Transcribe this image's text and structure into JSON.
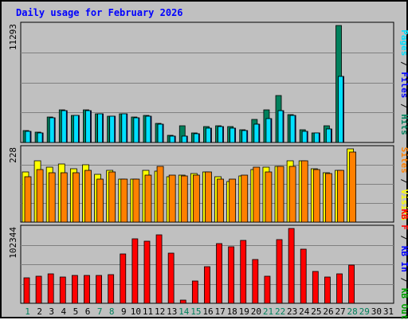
{
  "title": "Daily usage for February 2026",
  "colors": {
    "hits": "#00805c",
    "files": "#00c0ff",
    "pages": "#00e0ff",
    "visits": "#ffff00",
    "sites": "#ff8000",
    "kbin": "#ff0000",
    "background": "#c0c0c0",
    "weekday_label": "#000000",
    "weekend_label": "#00805c"
  },
  "chart_data": [
    {
      "type": "bar",
      "panel": "top",
      "max_label": "11293",
      "ymax": 11293,
      "right_label_parts": [
        {
          "text": "Pages",
          "color": "#00e0ff"
        },
        {
          "text": " / ",
          "color": "#000000"
        },
        {
          "text": "Files",
          "color": "#0000ff"
        },
        {
          "text": " / ",
          "color": "#000000"
        },
        {
          "text": "Hits",
          "color": "#00805c"
        }
      ],
      "categories": [
        "1",
        "2",
        "3",
        "4",
        "5",
        "6",
        "7",
        "8",
        "9",
        "10",
        "11",
        "12",
        "13",
        "14",
        "15",
        "16",
        "17",
        "18",
        "19",
        "20",
        "21",
        "22",
        "23",
        "24",
        "25",
        "26",
        "27",
        "28",
        "29",
        "30",
        "31"
      ],
      "series": [
        {
          "name": "Hits",
          "color": "#00805c",
          "values": [
            1150,
            1000,
            2450,
            3150,
            2650,
            3150,
            2800,
            2550,
            2800,
            2450,
            2600,
            1850,
            700,
            1650,
            900,
            1500,
            1600,
            1500,
            1250,
            2250,
            3150,
            4500,
            2700,
            1200,
            950,
            1600,
            11293,
            0,
            0,
            0,
            0
          ]
        },
        {
          "name": "Files",
          "color": "#0000ff",
          "values": [
            1100,
            950,
            2400,
            3100,
            2600,
            3100,
            2750,
            2500,
            2750,
            2400,
            2500,
            1800,
            650,
            600,
            850,
            1400,
            1500,
            1400,
            1150,
            1750,
            2300,
            3100,
            2600,
            1100,
            900,
            1300,
            6400,
            0,
            0,
            0,
            0
          ]
        },
        {
          "name": "Pages",
          "color": "#00e0ff",
          "values": [
            1100,
            950,
            2400,
            3100,
            2600,
            3100,
            2750,
            2500,
            2750,
            2400,
            2500,
            1800,
            650,
            600,
            850,
            1400,
            1500,
            1400,
            1150,
            1750,
            2300,
            3100,
            2600,
            1100,
            900,
            1300,
            6400,
            0,
            0,
            0,
            0
          ]
        }
      ]
    },
    {
      "type": "bar",
      "panel": "middle",
      "max_label": "228",
      "ymax": 228,
      "right_label_parts": [
        {
          "text": "Sites",
          "color": "#ff8000"
        },
        {
          "text": " / ",
          "color": "#000000"
        },
        {
          "text": "Visits",
          "color": "#ffff00"
        }
      ],
      "categories": [
        "1",
        "2",
        "3",
        "4",
        "5",
        "6",
        "7",
        "8",
        "9",
        "10",
        "11",
        "12",
        "13",
        "14",
        "15",
        "16",
        "17",
        "18",
        "19",
        "20",
        "21",
        "22",
        "23",
        "24",
        "25",
        "26",
        "27",
        "28",
        "29",
        "30",
        "31"
      ],
      "series": [
        {
          "name": "Visits",
          "color": "#ffff00",
          "values": [
            155,
            190,
            170,
            182,
            166,
            179,
            148,
            161,
            135,
            135,
            161,
            159,
            141,
            145,
            151,
            156,
            141,
            127,
            143,
            164,
            171,
            174,
            191,
            190,
            167,
            153,
            162,
            228,
            0,
            0,
            0
          ]
        },
        {
          "name": "Sites",
          "color": "#ff8000",
          "values": [
            142,
            163,
            154,
            153,
            153,
            160,
            133,
            157,
            135,
            135,
            145,
            173,
            147,
            143,
            147,
            157,
            133,
            134,
            146,
            172,
            155,
            174,
            173,
            191,
            163,
            152,
            162,
            219,
            0,
            0,
            0
          ]
        }
      ]
    },
    {
      "type": "bar",
      "panel": "bottom",
      "max_label": "102344",
      "ymax": 102344,
      "right_label_parts": [
        {
          "text": "KB F",
          "color": "#ff0000"
        },
        {
          "text": " / ",
          "color": "#000000"
        },
        {
          "text": "KB In",
          "color": "#0000ff"
        },
        {
          "text": " / ",
          "color": "#000000"
        },
        {
          "text": "KB Out",
          "color": "#00a000"
        }
      ],
      "categories": [
        "1",
        "2",
        "3",
        "4",
        "5",
        "6",
        "7",
        "8",
        "9",
        "10",
        "11",
        "12",
        "13",
        "14",
        "15",
        "16",
        "17",
        "18",
        "19",
        "20",
        "21",
        "22",
        "23",
        "24",
        "25",
        "26",
        "27",
        "28",
        "29",
        "30",
        "31"
      ],
      "series": [
        {
          "name": "KB F",
          "color": "#ff0000",
          "values": [
            35200,
            36500,
            39900,
            35600,
            38000,
            37900,
            37700,
            39200,
            68000,
            88200,
            85200,
            93600,
            69000,
            4500,
            30400,
            50500,
            81200,
            77800,
            86000,
            59600,
            37000,
            86900,
            102344,
            73500,
            43600,
            36200,
            40400,
            52500,
            0,
            0,
            0
          ]
        }
      ]
    }
  ],
  "x_labels": [
    {
      "text": "1",
      "weekend": true
    },
    {
      "text": "2",
      "weekend": false
    },
    {
      "text": "3",
      "weekend": false
    },
    {
      "text": "4",
      "weekend": false
    },
    {
      "text": "5",
      "weekend": false
    },
    {
      "text": "6",
      "weekend": false
    },
    {
      "text": "7",
      "weekend": true
    },
    {
      "text": "8",
      "weekend": true
    },
    {
      "text": "9",
      "weekend": false
    },
    {
      "text": "10",
      "weekend": false
    },
    {
      "text": "11",
      "weekend": false
    },
    {
      "text": "12",
      "weekend": false
    },
    {
      "text": "13",
      "weekend": false
    },
    {
      "text": "14",
      "weekend": true
    },
    {
      "text": "15",
      "weekend": true
    },
    {
      "text": "16",
      "weekend": false
    },
    {
      "text": "17",
      "weekend": false
    },
    {
      "text": "18",
      "weekend": false
    },
    {
      "text": "19",
      "weekend": false
    },
    {
      "text": "20",
      "weekend": false
    },
    {
      "text": "21",
      "weekend": true
    },
    {
      "text": "22",
      "weekend": true
    },
    {
      "text": "23",
      "weekend": false
    },
    {
      "text": "24",
      "weekend": false
    },
    {
      "text": "25",
      "weekend": false
    },
    {
      "text": "26",
      "weekend": false
    },
    {
      "text": "27",
      "weekend": false
    },
    {
      "text": "28",
      "weekend": true
    },
    {
      "text": "29",
      "weekend": true
    },
    {
      "text": "30",
      "weekend": false
    },
    {
      "text": "31",
      "weekend": false
    }
  ]
}
